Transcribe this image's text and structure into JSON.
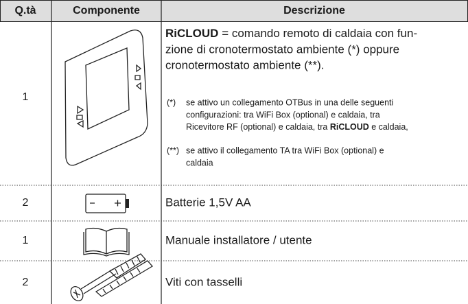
{
  "table": {
    "header": [
      "Q.tà",
      "Componente",
      "Descrizione"
    ],
    "rows": [
      {
        "qty": "1",
        "description": {
          "title": "RiCLOUD",
          "lines": [
            "= comando remoto di caldaia con fun-",
            "zione di cronotermostato ambiente (*) oppure",
            "cronotermostato ambiente (**)."
          ],
          "notes": [
            {
              "marker": "(*)",
              "lines": [
                "se attivo un collegamento OTBus in una delle seguenti",
                "configurazioni: tra WiFi Box (optional) e caldaia, tra",
                "Ricevitore RF (optional) e caldaia, tra "
              ],
              "bold": "RiCLOUD",
              "tail": " e caldaia,"
            },
            {
              "marker": "(**)",
              "lines": [
                "se attivo il collegamento TA tra WiFi Box (optional) e",
                "caldaia"
              ]
            }
          ]
        }
      },
      {
        "qty": "2",
        "description": "Batterie 1,5V AA"
      },
      {
        "qty": "1",
        "description": "Manuale installatore / utente"
      },
      {
        "qty": "2",
        "description": "Viti con tasselli"
      }
    ]
  }
}
